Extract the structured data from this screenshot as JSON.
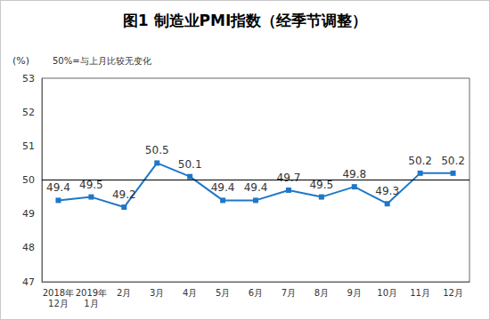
{
  "chart_data": {
    "type": "line",
    "title": "图1 制造业PMI指数（经季节调整）",
    "ylabel": "(%)",
    "note": "50%=与上月比较无变化",
    "categories": [
      "2018年\n12月",
      "2019年\n1月",
      "2月",
      "3月",
      "4月",
      "5月",
      "6月",
      "7月",
      "8月",
      "9月",
      "10月",
      "11月",
      "12月"
    ],
    "values": [
      49.4,
      49.5,
      49.2,
      50.5,
      50.1,
      49.4,
      49.4,
      49.7,
      49.5,
      49.8,
      49.3,
      50.2,
      50.2
    ],
    "color": "#1f77c8",
    "marker": "square",
    "baseline": 50,
    "ylim": [
      47,
      53
    ],
    "yticks": [
      47,
      48,
      49,
      50,
      51,
      52,
      53
    ],
    "grid": false,
    "data_labels": true
  }
}
